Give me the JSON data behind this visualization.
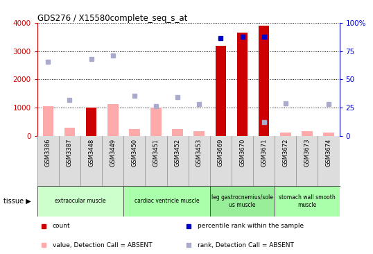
{
  "title": "GDS276 / X15580complete_seq_s_at",
  "samples": [
    "GSM3386",
    "GSM3387",
    "GSM3448",
    "GSM3449",
    "GSM3450",
    "GSM3451",
    "GSM3452",
    "GSM3453",
    "GSM3669",
    "GSM3670",
    "GSM3671",
    "GSM3672",
    "GSM3673",
    "GSM3674"
  ],
  "count_values": [
    null,
    null,
    1000,
    null,
    null,
    null,
    null,
    null,
    3200,
    3650,
    3900,
    null,
    null,
    null
  ],
  "count_absent_values": [
    1050,
    290,
    null,
    1130,
    230,
    1010,
    250,
    180,
    null,
    null,
    null,
    115,
    180,
    115
  ],
  "percentile_rank": [
    null,
    null,
    null,
    null,
    null,
    null,
    null,
    null,
    3450,
    3500,
    3500,
    null,
    null,
    null
  ],
  "percentile_rank_absent": [
    2630,
    1270,
    2720,
    2840,
    1420,
    1060,
    1360,
    1130,
    null,
    null,
    490,
    1140,
    null,
    1130
  ],
  "ylim_left": [
    0,
    4000
  ],
  "ylim_right": [
    0,
    100
  ],
  "yticks_left": [
    0,
    1000,
    2000,
    3000,
    4000
  ],
  "yticks_right": [
    0,
    25,
    50,
    75,
    100
  ],
  "tissues": [
    {
      "label": "extraocular muscle",
      "start": 0,
      "end": 4,
      "color": "#ccffcc"
    },
    {
      "label": "cardiac ventricle muscle",
      "start": 4,
      "end": 8,
      "color": "#aaffaa"
    },
    {
      "label": "leg gastrocnemius/sole\nus muscle",
      "start": 8,
      "end": 11,
      "color": "#99ee99"
    },
    {
      "label": "stomach wall smooth\nmuscle",
      "start": 11,
      "end": 14,
      "color": "#aaffaa"
    }
  ],
  "bar_color_count": "#cc0000",
  "bar_color_absent": "#ffaaaa",
  "dot_color_present": "#0000cc",
  "dot_color_absent": "#aaaacc",
  "bg_color": "#ffffff",
  "label_band_color": "#dddddd",
  "left_axis_color": "#cc0000",
  "right_axis_color": "#0000cc",
  "bar_width": 0.5
}
